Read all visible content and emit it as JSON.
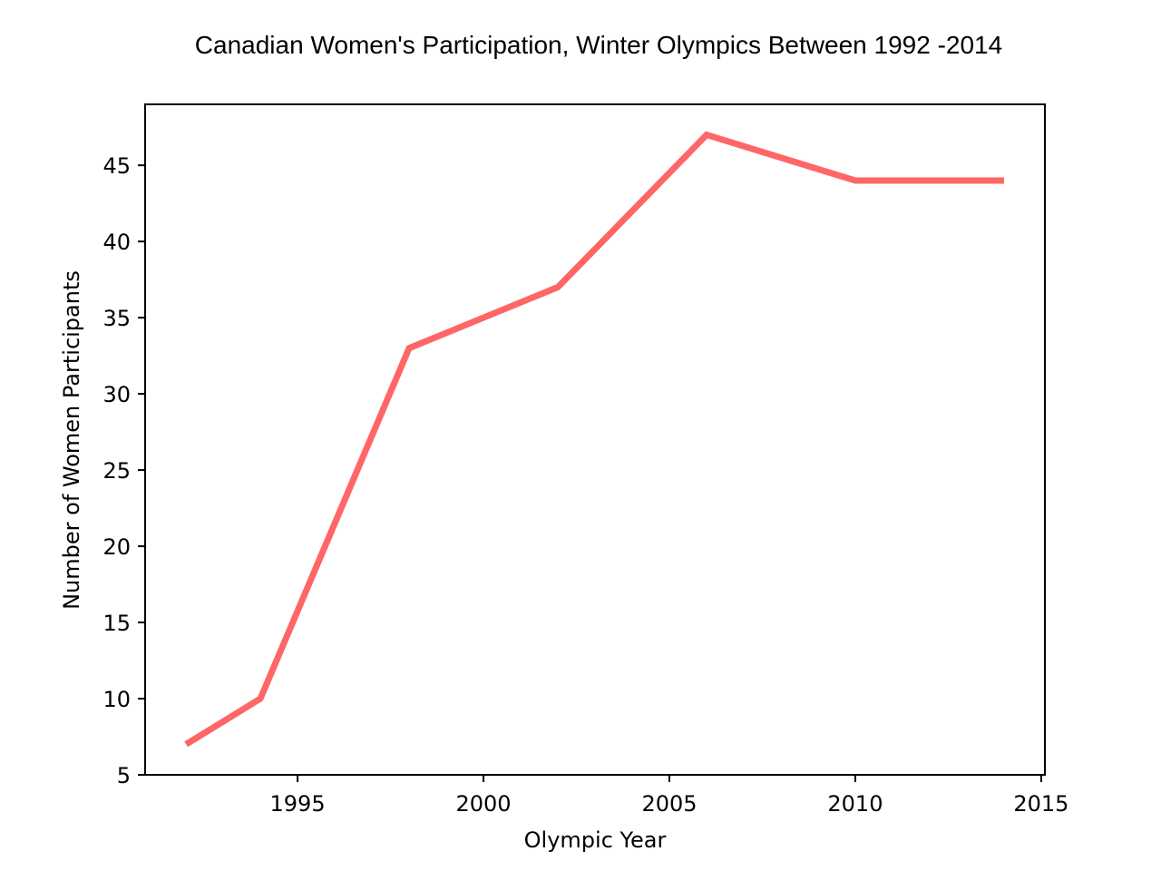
{
  "chart_data": {
    "type": "line",
    "title": "Canadian Women's Participation, Winter Olympics Between 1992 -2014",
    "xlabel": "Olympic Year",
    "ylabel": "Number of Women Participants",
    "x": [
      1992,
      1994,
      1998,
      2002,
      2006,
      2010,
      2014
    ],
    "series": [
      {
        "values": [
          7,
          10,
          33,
          37,
          47,
          44,
          44
        ],
        "color": "#ff6666"
      }
    ],
    "xlim": [
      1990.9,
      1995.0,
      2015.1
    ],
    "ylim": [
      5,
      49
    ],
    "xticks": [
      1995,
      2000,
      2005,
      2010,
      2015
    ],
    "yticks": [
      5,
      10,
      15,
      20,
      25,
      30,
      35,
      40,
      45
    ],
    "grid": false,
    "legend": "none"
  }
}
